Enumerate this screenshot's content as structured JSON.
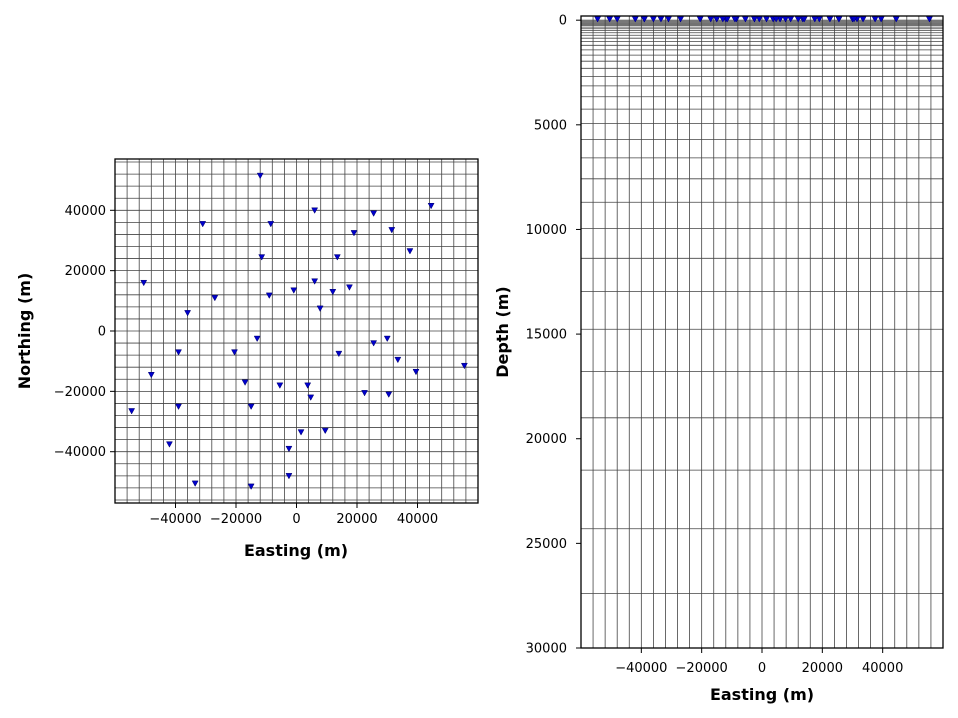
{
  "chart_data": [
    {
      "type": "scatter",
      "title": "",
      "xlabel": "Easting (m)",
      "ylabel": "Northing (m)",
      "xlim": [
        -60000,
        60000
      ],
      "ylim": [
        -57000,
        57000
      ],
      "xticks": [
        -40000,
        -20000,
        0,
        20000,
        40000
      ],
      "yticks": [
        -40000,
        -20000,
        0,
        20000,
        40000
      ],
      "xtick_labels": [
        "−40000",
        "−20000",
        "0",
        "20000",
        "40000"
      ],
      "ytick_labels": [
        "−40000",
        "−20000",
        "0",
        "20000",
        "40000"
      ],
      "grid": true,
      "grid_color": "#444444",
      "marker": "triangle-down",
      "marker_color": "#0000cc",
      "points": [
        [
          -12000,
          51500
        ],
        [
          -31000,
          35500
        ],
        [
          -8500,
          35500
        ],
        [
          6000,
          40000
        ],
        [
          25500,
          39000
        ],
        [
          44500,
          41500
        ],
        [
          19000,
          32500
        ],
        [
          31500,
          33500
        ],
        [
          37500,
          26500
        ],
        [
          -11500,
          24500
        ],
        [
          13500,
          24500
        ],
        [
          -50500,
          16000
        ],
        [
          6000,
          16500
        ],
        [
          17500,
          14500
        ],
        [
          -900,
          13500
        ],
        [
          12000,
          13000
        ],
        [
          -9000,
          11800
        ],
        [
          -27000,
          11000
        ],
        [
          7800,
          7500
        ],
        [
          -36000,
          6000
        ],
        [
          -13000,
          -2500
        ],
        [
          30000,
          -2500
        ],
        [
          25500,
          -4000
        ],
        [
          -39000,
          -7000
        ],
        [
          -20500,
          -7000
        ],
        [
          14000,
          -7500
        ],
        [
          33500,
          -9500
        ],
        [
          55500,
          -11500
        ],
        [
          -48000,
          -14500
        ],
        [
          39500,
          -13500
        ],
        [
          -17000,
          -17000
        ],
        [
          -5500,
          -18000
        ],
        [
          3700,
          -18000
        ],
        [
          22500,
          -20500
        ],
        [
          30500,
          -21000
        ],
        [
          4700,
          -22000
        ],
        [
          -39000,
          -25000
        ],
        [
          -15000,
          -25000
        ],
        [
          -54500,
          -26500
        ],
        [
          9500,
          -33000
        ],
        [
          1500,
          -33500
        ],
        [
          -42000,
          -37500
        ],
        [
          -2500,
          -39000
        ],
        [
          -2500,
          -48000
        ],
        [
          -33500,
          -50500
        ],
        [
          -15000,
          -51500
        ]
      ]
    },
    {
      "type": "scatter",
      "title": "",
      "xlabel": "Easting (m)",
      "ylabel": "Depth (m)",
      "xlim": [
        -60000,
        60000
      ],
      "ylim": [
        30000,
        -200
      ],
      "y_inverted": true,
      "xticks": [
        -40000,
        -20000,
        0,
        20000,
        40000
      ],
      "yticks": [
        0,
        5000,
        10000,
        15000,
        20000,
        25000,
        30000
      ],
      "xtick_labels": [
        "−40000",
        "−20000",
        "0",
        "20000",
        "40000"
      ],
      "ytick_labels": [
        "0",
        "5000",
        "10000",
        "15000",
        "20000",
        "25000",
        "30000"
      ],
      "grid": true,
      "grid_color": "#444444",
      "marker": "triangle-down",
      "marker_color": "#0000cc",
      "station_depth": 0,
      "mesh_depths": [
        0,
        50,
        100,
        150,
        200,
        260,
        330,
        410,
        500,
        600,
        720,
        860,
        1020,
        1200,
        1420,
        1670,
        1960,
        2300,
        2690,
        3140,
        3660,
        4250,
        4930,
        5700,
        6580,
        7580,
        8700,
        9960,
        11380,
        12970,
        14770,
        16780,
        19000,
        21500,
        24300,
        27400,
        30000
      ]
    }
  ]
}
